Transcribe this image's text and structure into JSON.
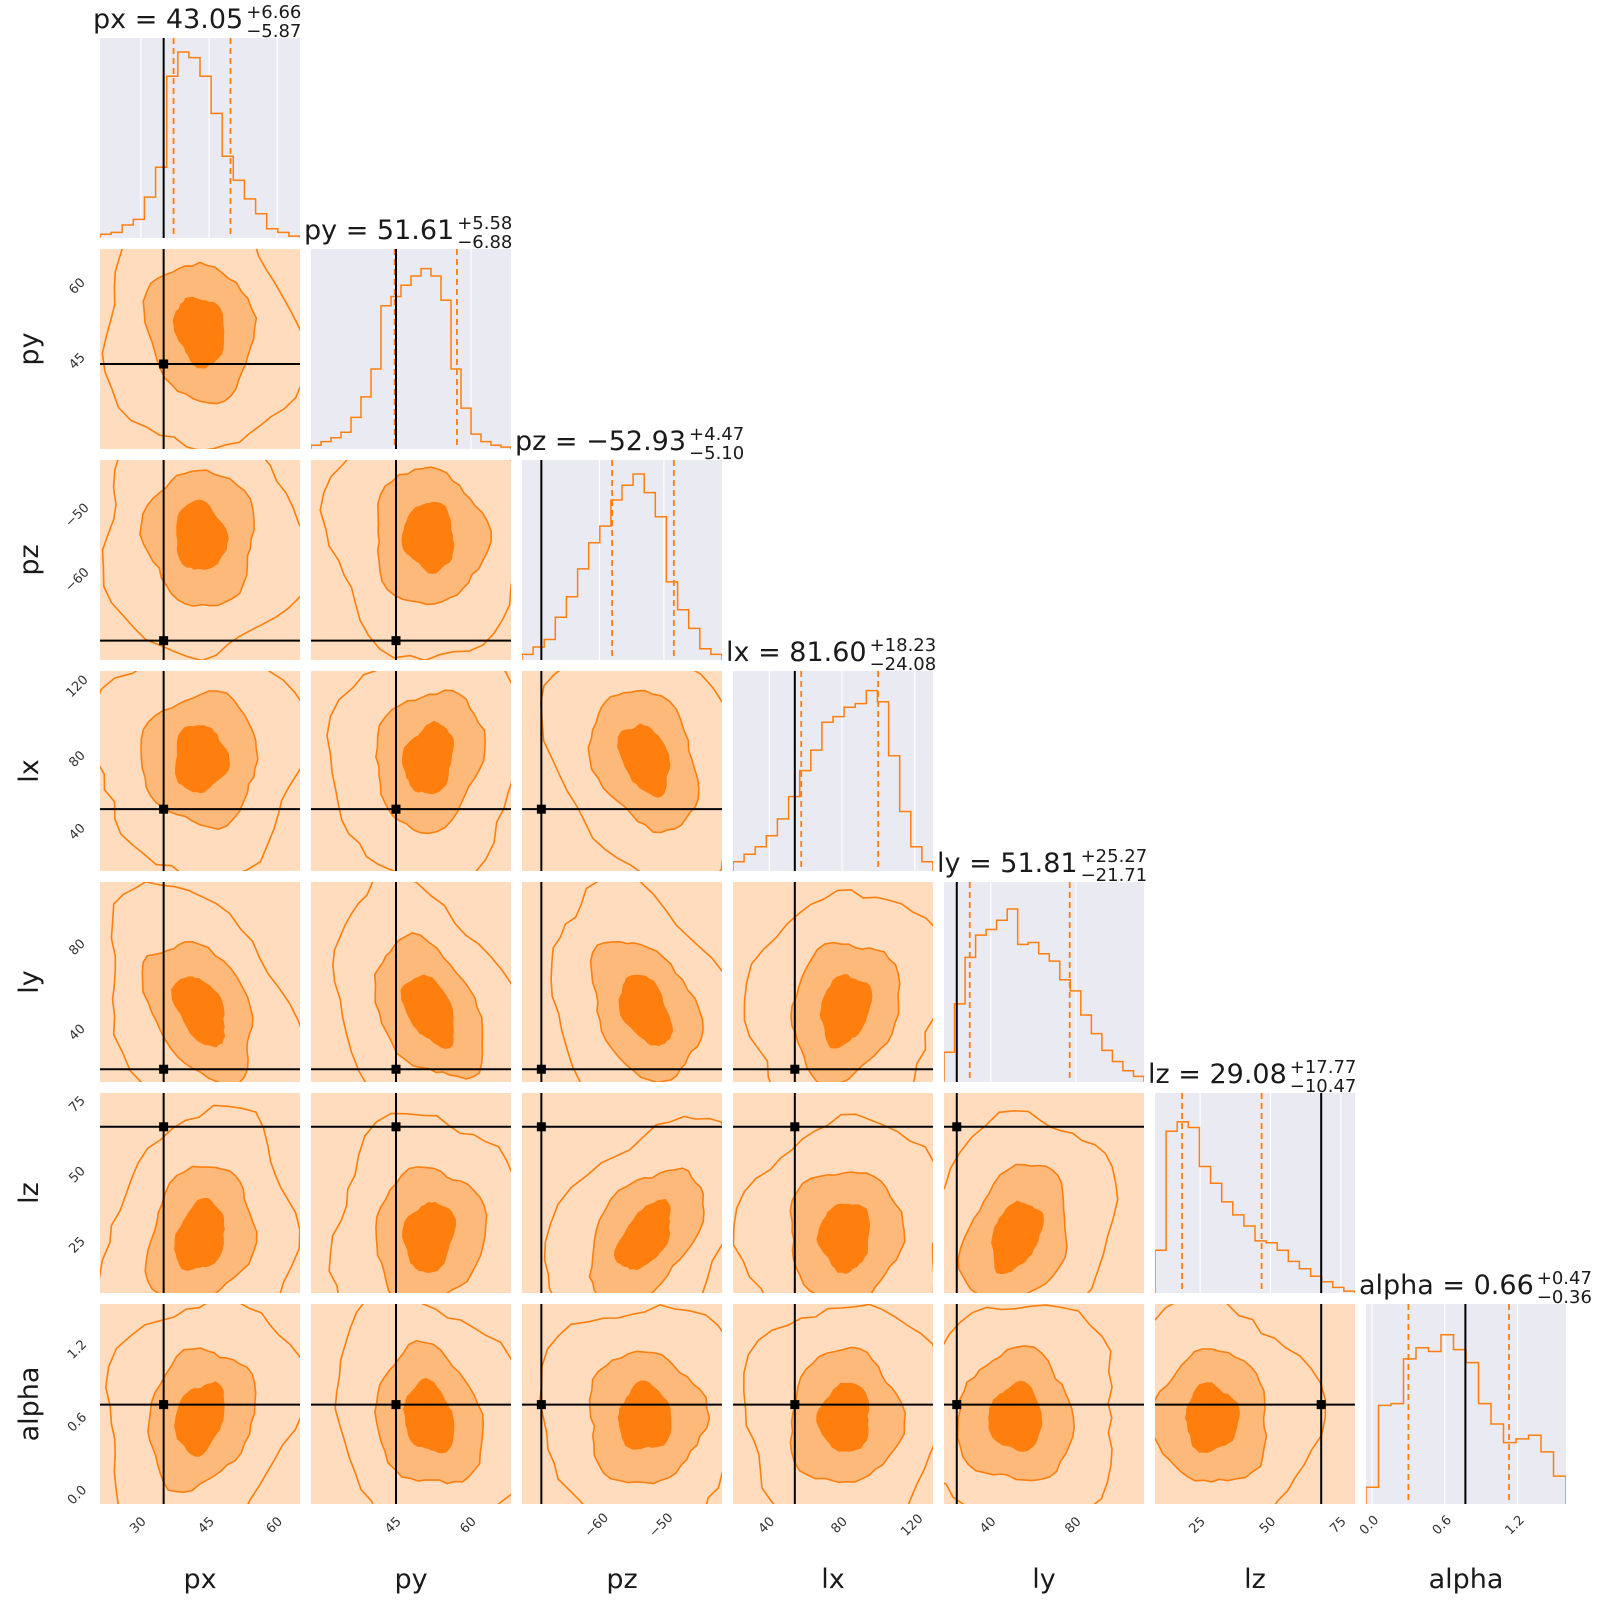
{
  "chart_data": {
    "type": "corner",
    "params": [
      "px",
      "py",
      "pz",
      "lx",
      "ly",
      "lz",
      "alpha"
    ],
    "axis_labels": [
      "px",
      "py",
      "pz",
      "lx",
      "ly",
      "lz",
      "alpha"
    ],
    "ranges": [
      [
        21,
        65
      ],
      [
        28,
        68
      ],
      [
        -72,
        -41
      ],
      [
        20,
        130
      ],
      [
        18,
        112
      ],
      [
        9,
        80
      ],
      [
        -0.05,
        1.6
      ]
    ],
    "ticks": [
      {
        "values": [
          30,
          45,
          60
        ],
        "labels": [
          "30",
          "45",
          "60"
        ]
      },
      {
        "values": [
          45,
          60
        ],
        "labels": [
          "45",
          "60"
        ]
      },
      {
        "values": [
          -60,
          -50
        ],
        "labels": [
          "−60",
          "−50"
        ]
      },
      {
        "values": [
          40,
          80,
          120
        ],
        "labels": [
          "40",
          "80",
          "120"
        ]
      },
      {
        "values": [
          40,
          80
        ],
        "labels": [
          "40",
          "80"
        ]
      },
      {
        "values": [
          25,
          50,
          75
        ],
        "labels": [
          "25",
          "50",
          "75"
        ]
      },
      {
        "values": [
          0.0,
          0.6,
          1.2
        ],
        "labels": [
          "0.0",
          "0.6",
          "1.2"
        ]
      }
    ],
    "titles": [
      {
        "text": "px = 43.05",
        "plus": "+6.66",
        "minus": "−5.87"
      },
      {
        "text": "py = 51.61",
        "plus": "+5.58",
        "minus": "−6.88"
      },
      {
        "text": "pz = −52.93",
        "plus": "+4.47",
        "minus": "−5.10"
      },
      {
        "text": "lx = 81.60",
        "plus": "+18.23",
        "minus": "−24.08"
      },
      {
        "text": "ly = 51.81",
        "plus": "+25.27",
        "minus": "−21.71"
      },
      {
        "text": "lz = 29.08",
        "plus": "+17.77",
        "minus": "−10.47"
      },
      {
        "text": "alpha = 0.66",
        "plus": "+0.47",
        "minus": "−0.36"
      }
    ],
    "medians": [
      43.05,
      51.61,
      -52.93,
      81.6,
      51.81,
      29.08,
      0.66
    ],
    "plus": [
      6.66,
      5.58,
      4.47,
      18.23,
      25.27,
      17.77,
      0.47
    ],
    "minus": [
      5.87,
      6.88,
      5.1,
      24.08,
      21.71,
      10.47,
      0.36
    ],
    "truths": [
      35,
      45,
      -69,
      54,
      24,
      68,
      0.77
    ],
    "hist_heights": [
      [
        0.02,
        0.03,
        0.07,
        0.1,
        0.22,
        0.38,
        0.87,
        1.0,
        0.97,
        0.87,
        0.67,
        0.44,
        0.31,
        0.21,
        0.13,
        0.05,
        0.03,
        0.01
      ],
      [
        0.02,
        0.04,
        0.06,
        0.09,
        0.17,
        0.28,
        0.43,
        0.77,
        0.82,
        0.88,
        0.93,
        0.97,
        0.93,
        0.8,
        0.43,
        0.22,
        0.08,
        0.04,
        0.02,
        0.01
      ],
      [
        0.03,
        0.07,
        0.11,
        0.23,
        0.34,
        0.49,
        0.63,
        0.72,
        0.86,
        0.94,
        1.0,
        0.9,
        0.77,
        0.42,
        0.27,
        0.17,
        0.06,
        0.03
      ],
      [
        0.05,
        0.09,
        0.13,
        0.19,
        0.28,
        0.4,
        0.54,
        0.65,
        0.8,
        0.83,
        0.88,
        0.9,
        0.97,
        0.91,
        0.62,
        0.32,
        0.13,
        0.05
      ],
      [
        0.16,
        0.42,
        0.67,
        0.79,
        0.82,
        0.87,
        0.93,
        0.74,
        0.75,
        0.69,
        0.65,
        0.55,
        0.49,
        0.36,
        0.26,
        0.17,
        0.11,
        0.06,
        0.03
      ],
      [
        0.23,
        0.87,
        0.92,
        0.89,
        0.68,
        0.59,
        0.49,
        0.42,
        0.36,
        0.28,
        0.27,
        0.23,
        0.17,
        0.13,
        0.09,
        0.06,
        0.03,
        0.01
      ],
      [
        0.09,
        0.53,
        0.54,
        0.78,
        0.84,
        0.82,
        0.91,
        0.83,
        0.76,
        0.54,
        0.43,
        0.33,
        0.35,
        0.37,
        0.28,
        0.15
      ]
    ],
    "contour_levels": 3,
    "colors": {
      "line": "#ff7f0e",
      "fill_outer": "#fedcbd",
      "fill_mid": "#fdb97a",
      "fill_inner": "#ff7f0e",
      "truth": "#000000",
      "panel_bg": "#eaeaf2",
      "grid": "#ffffff"
    },
    "grid": true
  }
}
